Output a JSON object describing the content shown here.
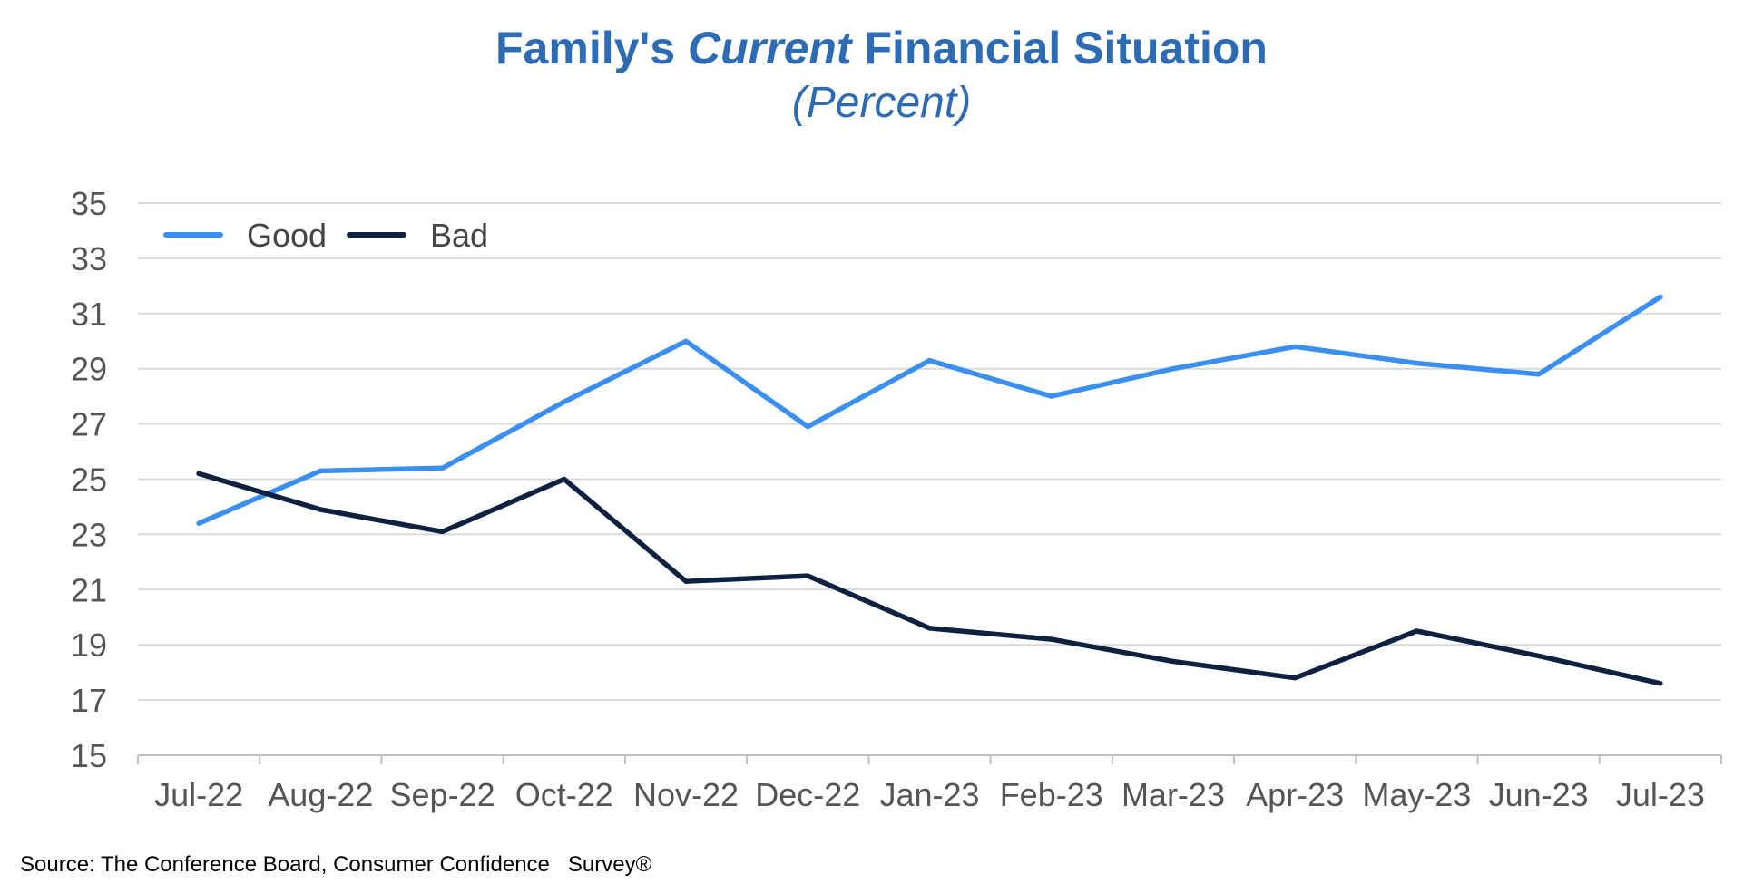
{
  "chart_data": {
    "type": "line",
    "title": {
      "before": "Family's ",
      "emph": "Current",
      "after": " Financial Situation"
    },
    "subtitle": "(Percent)",
    "xlabel": "",
    "ylabel": "",
    "categories": [
      "Jul-22",
      "Aug-22",
      "Sep-22",
      "Oct-22",
      "Nov-22",
      "Dec-22",
      "Jan-23",
      "Feb-23",
      "Mar-23",
      "Apr-23",
      "May-23",
      "Jun-23",
      "Jul-23"
    ],
    "ylim": [
      15,
      35
    ],
    "yticks": [
      15,
      17,
      19,
      21,
      23,
      25,
      27,
      29,
      31,
      33,
      35
    ],
    "grid": true,
    "legend_position": "top-left",
    "series": [
      {
        "name": "Good",
        "color": "#3a8ff0",
        "values": [
          23.4,
          25.3,
          25.4,
          27.8,
          30.0,
          26.9,
          29.3,
          28.0,
          29.0,
          29.8,
          29.2,
          28.8,
          31.6
        ]
      },
      {
        "name": "Bad",
        "color": "#0e2140",
        "values": [
          25.2,
          23.9,
          23.1,
          25.0,
          21.3,
          21.5,
          19.6,
          19.2,
          18.4,
          17.8,
          19.5,
          18.6,
          17.6
        ]
      }
    ]
  },
  "source": "Source: The Conference Board, Consumer Confidence   Survey®"
}
